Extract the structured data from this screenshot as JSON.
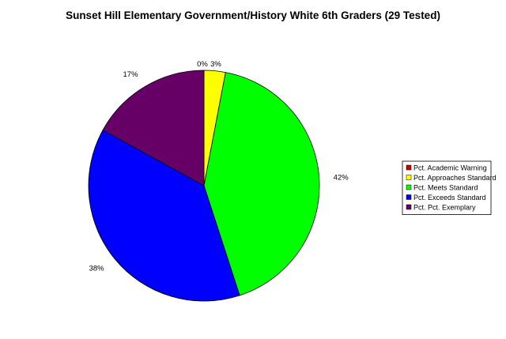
{
  "chart_data": {
    "type": "pie",
    "title": "Sunset Hill Elementary Government/History White 6th Graders (29 Tested)",
    "slices": [
      {
        "label": "Pct. Academic Warning",
        "value": 0,
        "display": "0%",
        "color": "#cc0000"
      },
      {
        "label": "Pct. Approaches Standard",
        "value": 3,
        "display": "3%",
        "color": "#ffff00"
      },
      {
        "label": "Pct. Meets Standard",
        "value": 42,
        "display": "42%",
        "color": "#00ff00"
      },
      {
        "label": "Pct. Exceeds Standard",
        "value": 38,
        "display": "38%",
        "color": "#0000ff"
      },
      {
        "label": "Pct. Pct. Exemplary",
        "value": 17,
        "display": "17%",
        "color": "#660066"
      }
    ],
    "legend_position": "right"
  }
}
